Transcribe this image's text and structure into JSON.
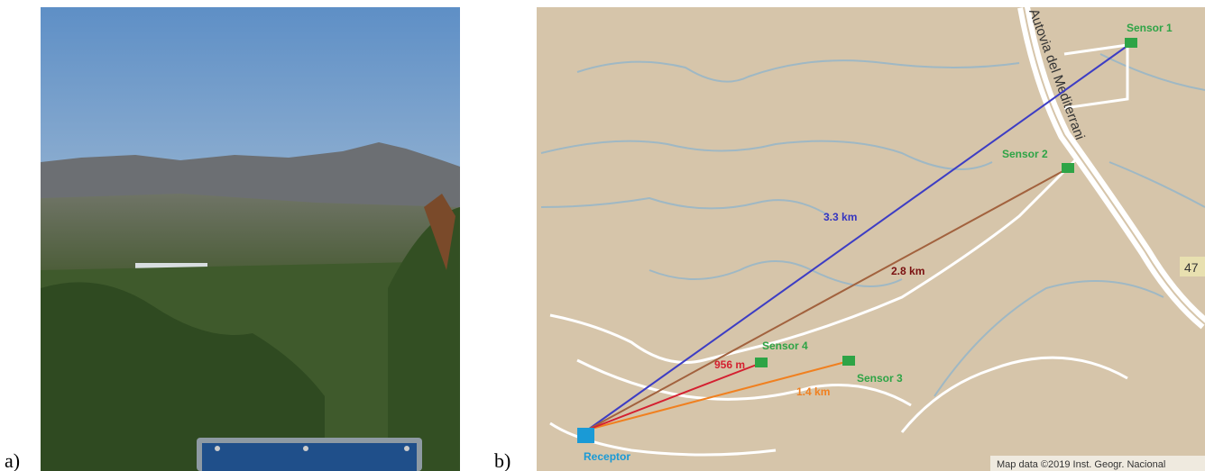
{
  "panels": {
    "a": {
      "label": "a)"
    },
    "b": {
      "label": "b)"
    }
  },
  "map": {
    "road_name": "Autovia del Mediterrani",
    "road_number": "47",
    "attribution": "Map data ©2019 Inst. Geogr. Nacional",
    "receptor": "Receptor",
    "sensors": [
      "Sensor 1",
      "Sensor 2",
      "Sensor 3",
      "Sensor 4"
    ],
    "distances": [
      "3.3 km",
      "2.8 km",
      "1.4 km",
      "956 m"
    ]
  }
}
